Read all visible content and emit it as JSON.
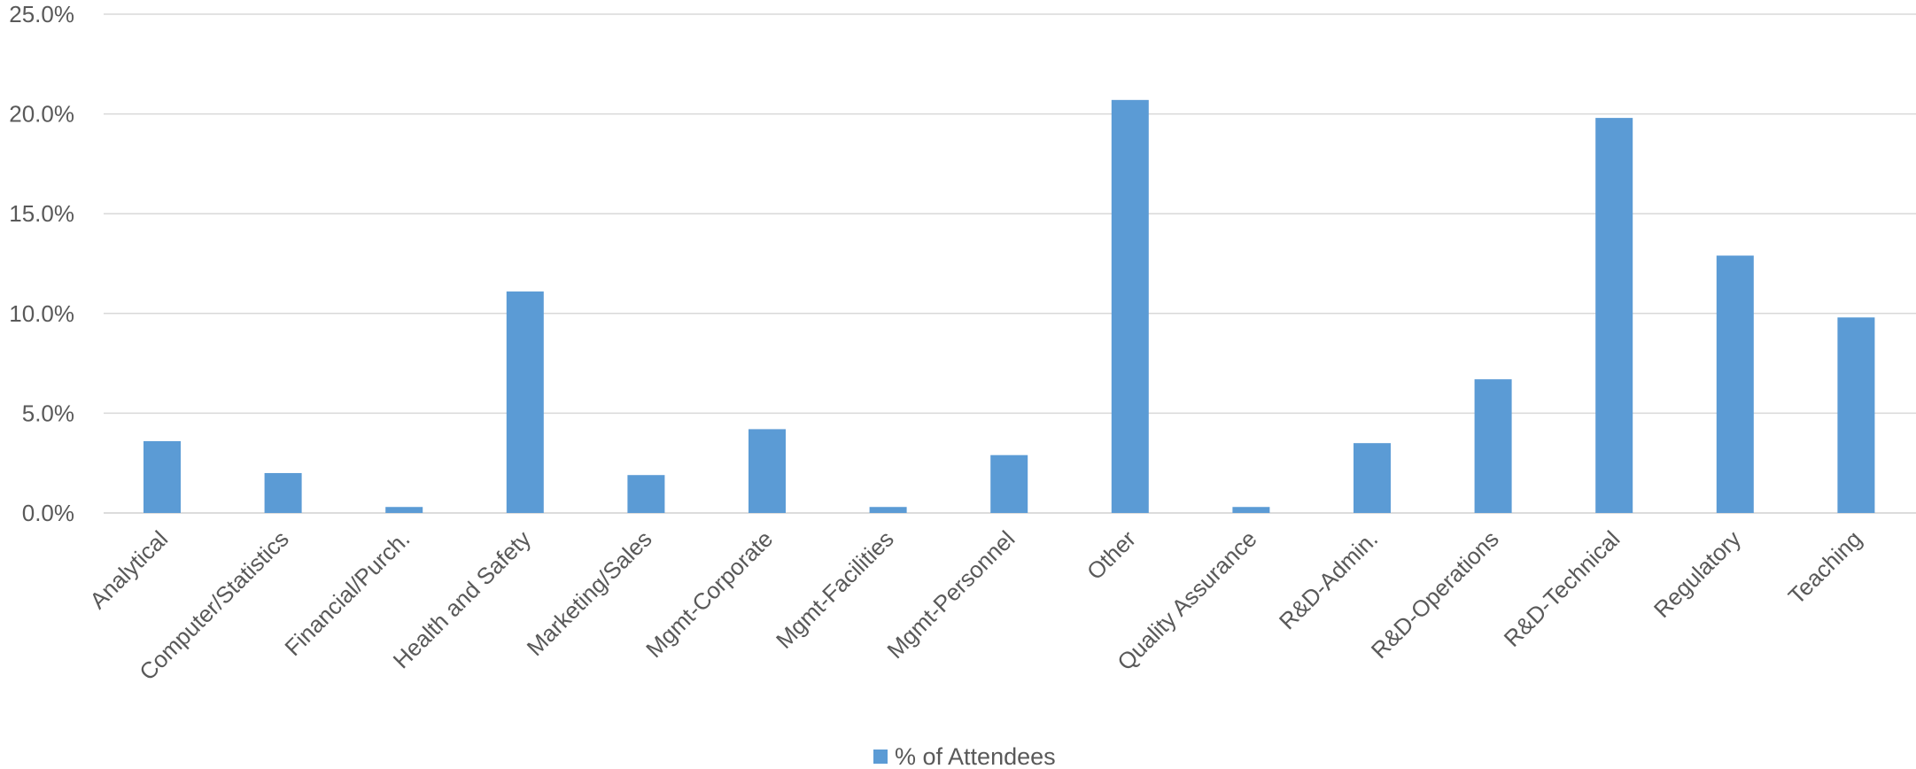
{
  "chart_data": {
    "type": "bar",
    "categories": [
      "Analytical",
      "Computer/Statistics",
      "Financial/Purch.",
      "Health and Safety",
      "Marketing/Sales",
      "Mgmt-Corporate",
      "Mgmt-Facilities",
      "Mgmt-Personnel",
      "Other",
      "Quality Assurance",
      "R&D-Admin.",
      "R&D-Operations",
      "R&D-Technical",
      "Regulatory",
      "Teaching"
    ],
    "series": [
      {
        "name": "% of Attendees",
        "color": "#5b9bd5",
        "values": [
          3.6,
          2.0,
          0.3,
          11.1,
          1.9,
          4.2,
          0.3,
          2.9,
          20.7,
          0.3,
          3.5,
          6.7,
          19.8,
          12.9,
          9.8
        ]
      }
    ],
    "yticks": [
      "0.0%",
      "5.0%",
      "10.0%",
      "15.0%",
      "20.0%",
      "25.0%"
    ],
    "ylim": [
      0,
      25
    ],
    "grid": true,
    "legend_position": "bottom",
    "title": "",
    "xlabel": "",
    "ylabel": ""
  }
}
